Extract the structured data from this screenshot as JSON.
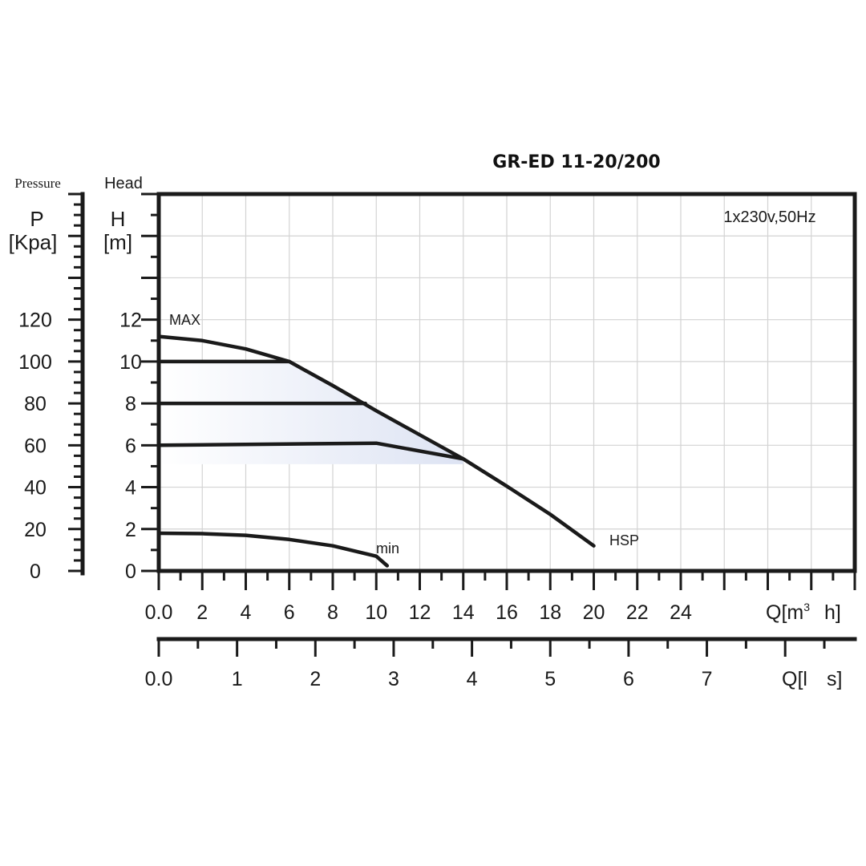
{
  "chart_data": {
    "type": "line",
    "title": "GR-ED 11-20/200",
    "supply_note": "1x230v,50Hz",
    "left_axis": {
      "caption": "Pressure",
      "symbol": "P",
      "unit": "[Kpa]",
      "ticks": [
        "0",
        "20",
        "40",
        "60",
        "80",
        "100",
        "120"
      ],
      "values": [
        0,
        20,
        40,
        60,
        80,
        100,
        120
      ]
    },
    "head_axis": {
      "caption": "Head",
      "symbol": "H",
      "unit": "[m]",
      "ticks": [
        "0",
        "2",
        "4",
        "6",
        "8",
        "10",
        "12"
      ],
      "values": [
        0,
        2,
        4,
        6,
        8,
        10,
        12
      ],
      "ylim": [
        0,
        18
      ]
    },
    "flow_axis_m3h": {
      "label_prefix": "Q[m",
      "label_sup": "3",
      "label_suffix": "h]",
      "ticks": [
        "0.0",
        "2",
        "4",
        "6",
        "8",
        "10",
        "12",
        "14",
        "16",
        "18",
        "20",
        "22",
        "24"
      ],
      "values": [
        0,
        2,
        4,
        6,
        8,
        10,
        12,
        14,
        16,
        18,
        20,
        22,
        24
      ],
      "xlim": [
        0,
        32
      ]
    },
    "flow_axis_ls": {
      "label_prefix": "Q[l",
      "label_suffix": "s]",
      "ticks": [
        "0.0",
        "1",
        "2",
        "3",
        "4",
        "5",
        "6",
        "7"
      ],
      "values": [
        0,
        1,
        2,
        3,
        4,
        5,
        6,
        7
      ]
    },
    "grid": true,
    "series": [
      {
        "name": "MAX",
        "x": [
          0,
          2,
          4,
          6,
          8,
          10,
          12,
          14,
          16,
          18,
          20
        ],
        "y": [
          11.2,
          11.0,
          10.6,
          10.0,
          8.85,
          7.65,
          6.5,
          5.35,
          4.05,
          2.7,
          1.2
        ]
      },
      {
        "name": "min",
        "x": [
          0,
          2,
          4,
          6,
          8,
          10,
          10.5
        ],
        "y": [
          1.8,
          1.78,
          1.7,
          1.5,
          1.2,
          0.7,
          0.25
        ]
      },
      {
        "name": "10m line",
        "x": [
          0,
          6
        ],
        "y": [
          10,
          10
        ]
      },
      {
        "name": "8m line",
        "x": [
          0,
          9.5
        ],
        "y": [
          8,
          8
        ]
      },
      {
        "name": "6m line",
        "x": [
          0,
          10,
          14
        ],
        "y": [
          6,
          6.1,
          5.35
        ]
      }
    ],
    "annotations": {
      "max_label": "MAX",
      "min_label": "min",
      "hsp_label": "HSP"
    }
  }
}
